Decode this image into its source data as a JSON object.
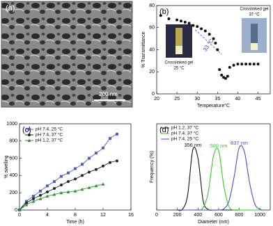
{
  "image_panel": {
    "label": "(a)",
    "scale_bar": "200 nm"
  },
  "chart_data": [
    {
      "type": "scatter",
      "label": "(b)",
      "xlabel": "Temperature°C",
      "ylabel": "% Transmittance",
      "x": [
        21,
        23,
        25,
        26,
        27,
        28,
        29,
        30,
        31,
        32,
        33,
        34,
        34.5,
        35,
        35.5,
        36,
        36.5,
        37,
        37.5,
        38,
        39,
        40,
        41,
        42,
        43,
        44,
        45
      ],
      "series": [
        {
          "color": "#111111",
          "marker": "circle",
          "values": [
            71,
            68,
            67,
            66,
            65,
            64,
            62,
            61,
            59,
            57,
            54,
            50,
            46,
            40,
            22,
            17,
            15,
            14,
            16,
            24,
            26,
            27,
            27,
            27,
            27,
            27,
            27
          ]
        }
      ],
      "xlim": [
        20,
        48
      ],
      "xticks": [
        20,
        25,
        30,
        35,
        40,
        45
      ],
      "ylim": [
        0,
        80
      ],
      "yticks": [
        0,
        20,
        40,
        60,
        80
      ],
      "annotation": "33 °C",
      "annotation_color": "#3355cc",
      "insets": [
        [
          "Crosslinked gel",
          "25 °C"
        ],
        [
          "Crosslinked gel",
          "37 °C"
        ]
      ]
    },
    {
      "type": "line",
      "label": "(c)",
      "xlabel": "Time (h)",
      "ylabel": "% swelling",
      "x": [
        0,
        1,
        2,
        3,
        4,
        5,
        6,
        7,
        8,
        9,
        10,
        11,
        12,
        13,
        14
      ],
      "series": [
        {
          "name": "pH 7.4, 25 °C",
          "color": "#4a5fc1",
          "marker": "square",
          "values": [
            0,
            100,
            160,
            220,
            280,
            330,
            390,
            430,
            480,
            530,
            600,
            660,
            720,
            830,
            880
          ]
        },
        {
          "name": "pH 7.4, 37 °C",
          "color": "#222222",
          "marker": "circle",
          "values": [
            0,
            80,
            130,
            170,
            210,
            250,
            290,
            330,
            360,
            400,
            440,
            470,
            510,
            550,
            570
          ]
        },
        {
          "name": "pH 1.2, 37 °C",
          "color": "#2a9a2a",
          "marker": "triangle",
          "values": [
            0,
            60,
            100,
            130,
            160,
            180,
            200,
            210,
            220,
            240,
            260,
            280,
            300,
            null,
            null
          ]
        }
      ],
      "xlim": [
        0,
        16
      ],
      "xticks": [
        0,
        4,
        8,
        12,
        16
      ],
      "ylim": [
        0,
        1000
      ],
      "yticks": [
        0,
        200,
        400,
        600,
        800,
        1000
      ]
    },
    {
      "type": "line",
      "label": "(d)",
      "xlabel": "Diameter (nm)",
      "ylabel": "Frequency (%)",
      "x": [
        200,
        250,
        300,
        350,
        400,
        450,
        500,
        550,
        600,
        650,
        700,
        750,
        800,
        850,
        900,
        950,
        1000,
        1050
      ],
      "series": [
        {
          "name": "pH 1.2, 37 °C",
          "color": "#111111",
          "peak_label": "356 nm",
          "values": [
            0,
            0.5,
            10.4,
            42,
            36,
            6.5,
            0.3,
            0,
            0,
            0,
            0,
            0,
            0,
            0,
            0,
            0,
            0,
            0
          ]
        },
        {
          "name": "pH 7.4, 37 °C",
          "color": "#33cc22",
          "peak_label": "580 nm",
          "values": [
            0,
            0,
            0,
            0,
            0,
            1.5,
            12.6,
            37.6,
            41.5,
            16.9,
            2.5,
            0,
            0,
            0,
            0,
            0,
            0,
            0
          ]
        },
        {
          "name": "pH 7.4, 25 °C",
          "color": "#4a4ad0",
          "peak_label": "837 nm",
          "values": [
            0,
            0,
            0,
            0,
            0,
            0,
            0,
            0,
            0,
            0.8,
            6.2,
            23,
            43.5,
            40.5,
            19,
            4.4,
            0.5,
            0
          ]
        }
      ],
      "xlim": [
        0,
        1100
      ],
      "xticks": [
        0,
        200,
        400,
        600,
        800,
        1000
      ],
      "ylim": [
        0,
        60
      ]
    }
  ]
}
